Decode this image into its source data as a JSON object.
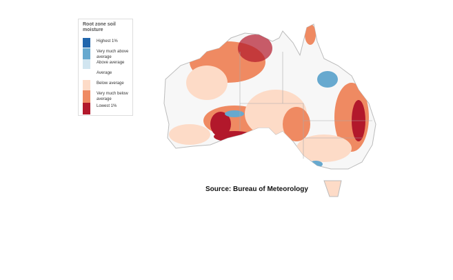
{
  "legend": {
    "title": "Root zone soil moisture",
    "items": [
      {
        "label": "Highest 1%",
        "color": "#2166ac"
      },
      {
        "label": "Very much above average",
        "color": "#67a9cf"
      },
      {
        "label": "Above average",
        "color": "#d1e5f0"
      },
      {
        "label": "Average",
        "color": "#ffffff"
      },
      {
        "label": "Below average",
        "color": "#fddbc7"
      },
      {
        "label": "Very much below average",
        "color": "#ef8a62"
      },
      {
        "label": "Lowest 1%",
        "color": "#b2182b"
      }
    ]
  },
  "source": "Source: Bureau of Meteorology"
}
